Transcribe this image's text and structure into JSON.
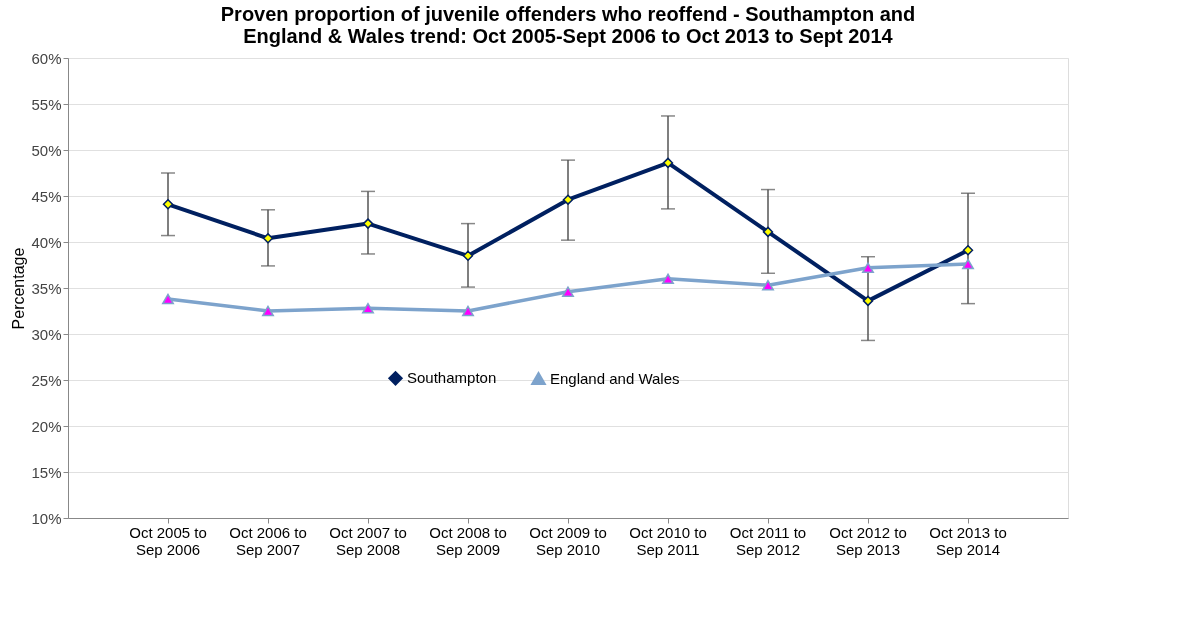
{
  "chart_data": {
    "type": "line",
    "title": "Proven proportion of juvenile offenders who reoffend - Southampton and\nEngland & Wales trend: Oct 2005-Sept 2006 to Oct 2013 to Sept 2014",
    "ylabel": "Percentage",
    "categories": [
      "Oct 2005 to\nSep 2006",
      "Oct 2006 to\nSep 2007",
      "Oct 2007 to\nSep 2008",
      "Oct 2008 to\nSep 2009",
      "Oct 2009 to\nSep 2010",
      "Oct 2010 to\nSep 2011",
      "Oct 2011 to\nSep 2012",
      "Oct 2012 to\nSep 2013",
      "Oct 2013 to\nSep 2014"
    ],
    "series": [
      {
        "name": "Southampton",
        "color": "#002060",
        "marker": "diamond",
        "colors": [
          "#ffff00",
          "#ffff00",
          "#ffff00",
          "#ffff00",
          "#ffff00",
          "#ffff00",
          "#ffff00",
          "#ffff00",
          "#ffff00"
        ],
        "values": [
          44.1,
          40.4,
          42.0,
          38.5,
          44.6,
          48.6,
          41.1,
          33.6,
          39.1
        ],
        "errors": [
          [
            40.7,
            47.5
          ],
          [
            37.4,
            43.5
          ],
          [
            38.7,
            45.5
          ],
          [
            35.1,
            42.0
          ],
          [
            40.2,
            48.9
          ],
          [
            43.6,
            53.7
          ],
          [
            36.6,
            45.7
          ],
          [
            29.3,
            38.4
          ],
          [
            33.3,
            45.3
          ]
        ]
      },
      {
        "name": "England and Wales",
        "color": "#7da3cc",
        "marker": "triangle",
        "colors": [
          "#ff00ff",
          "#ff00ff",
          "#ff00ff",
          "#ff00ff",
          "#ff00ff",
          "#ff00ff",
          "#ff00ff",
          "#ff00ff",
          "#ff00ff"
        ],
        "values": [
          33.8,
          32.5,
          32.8,
          32.5,
          34.6,
          36.0,
          35.3,
          37.2,
          37.6
        ]
      }
    ],
    "ylim": [
      10,
      60
    ],
    "yticks": [
      {
        "value": 10,
        "label": "10%"
      },
      {
        "value": 15,
        "label": "15%"
      },
      {
        "value": 20,
        "label": "20%"
      },
      {
        "value": 25,
        "label": "25%"
      },
      {
        "value": 30,
        "label": "30%"
      },
      {
        "value": 35,
        "label": "35%"
      },
      {
        "value": 40,
        "label": "40%"
      },
      {
        "value": 45,
        "label": "45%"
      },
      {
        "value": 50,
        "label": "50%"
      },
      {
        "value": 55,
        "label": "55%"
      },
      {
        "value": 60,
        "label": "60%"
      }
    ],
    "grid": "y",
    "legend": "bottom",
    "line_style": "solid"
  }
}
